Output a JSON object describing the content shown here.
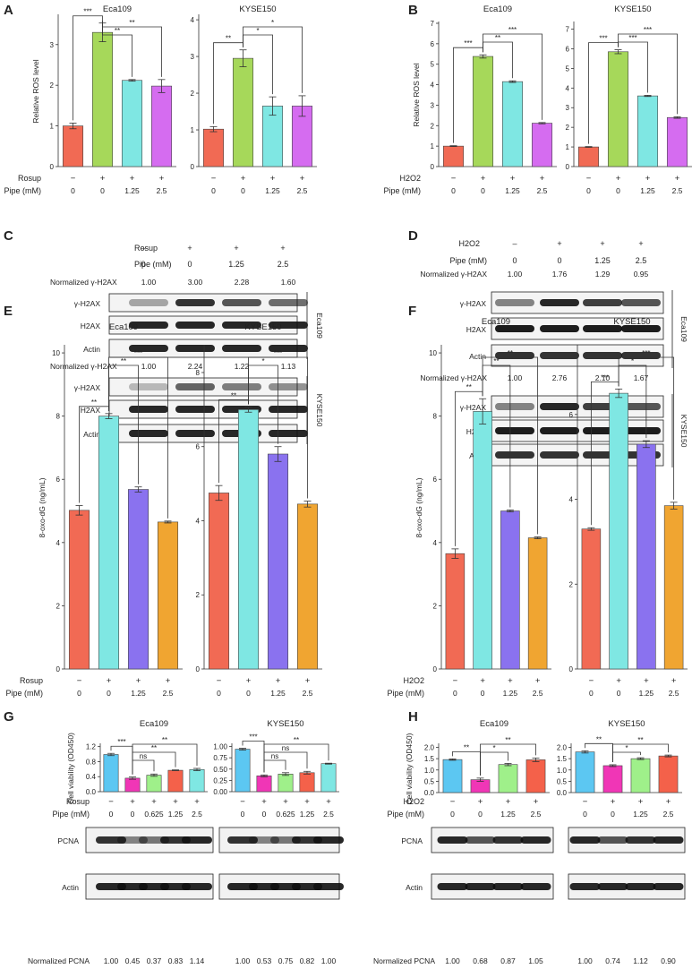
{
  "colors": {
    "red": "#f16a54",
    "green": "#a6d85a",
    "cyan": "#7fe7e3",
    "magenta": "#d56cf0",
    "purple": "#8a72ef",
    "orange": "#f0a531",
    "sky": "#5cc7f2",
    "pink": "#f036b6",
    "lightgreen": "#9ff08a",
    "coral": "#f4614a"
  },
  "panels": {
    "A": {
      "letter": "A",
      "condition": {
        "label": "Rosup",
        "values": [
          "−",
          "+",
          "+",
          "+"
        ]
      },
      "pipe": {
        "label": "Pipe (mM)",
        "values": [
          "0",
          "0",
          "1.25",
          "2.5"
        ]
      }
    },
    "B": {
      "letter": "B",
      "condition": {
        "label": "H2O2",
        "values": [
          "−",
          "+",
          "+",
          "+"
        ]
      },
      "pipe": {
        "label": "Pipe (mM)",
        "values": [
          "0",
          "0",
          "1.25",
          "2.5"
        ]
      }
    },
    "C": {
      "letter": "C",
      "header": {
        "condition_label": "Rosup",
        "condition_values": [
          "–",
          "+",
          "+",
          "+"
        ],
        "pipe_label": "Pipe (mM)",
        "pipe_values": [
          "0",
          "0",
          "1.25",
          "2.5"
        ]
      },
      "groups": [
        {
          "cell": "Eca109",
          "norm_label": "Normalized γ-H2AX",
          "norm": [
            "1.00",
            "3.00",
            "2.28",
            "1.60"
          ],
          "rows": [
            "γ-H2AX",
            "H2AX",
            "Actin"
          ]
        },
        {
          "cell": "KYSE150",
          "norm_label": "Normalized γ-H2AX",
          "norm": [
            "1.00",
            "2.24",
            "1.22",
            "1.13"
          ],
          "rows": [
            "γ-H2AX",
            "H2AX",
            "Actin"
          ]
        }
      ]
    },
    "D": {
      "letter": "D",
      "header": {
        "condition_label": "H2O2",
        "condition_values": [
          "–",
          "+",
          "+",
          "+"
        ],
        "pipe_label": "Pipe (mM)",
        "pipe_values": [
          "0",
          "0",
          "1.25",
          "2.5"
        ]
      },
      "groups": [
        {
          "cell": "Eca109",
          "norm_label": "Normalized γ-H2AX",
          "norm": [
            "1.00",
            "1.76",
            "1.29",
            "0.95"
          ],
          "rows": [
            "γ-H2AX",
            "H2AX",
            "Actin"
          ]
        },
        {
          "cell": "KYSE150",
          "norm_label": "Normalized γ-H2AX",
          "norm": [
            "1.00",
            "2.76",
            "2.10",
            "1.67"
          ],
          "rows": [
            "γ-H2AX",
            "H2AX",
            "Actin"
          ]
        }
      ]
    },
    "E": {
      "letter": "E",
      "condition": {
        "label": "Rosup",
        "values": [
          "−",
          "+",
          "+",
          "+"
        ]
      },
      "pipe": {
        "label": "Pipe (mM)",
        "values": [
          "0",
          "0",
          "1.25",
          "2.5"
        ]
      }
    },
    "F": {
      "letter": "F",
      "condition": {
        "label": "H2O2",
        "values": [
          "−",
          "+",
          "+",
          "+"
        ]
      },
      "pipe": {
        "label": "Pipe (mM)",
        "values": [
          "0",
          "0",
          "1.25",
          "2.5"
        ]
      }
    },
    "G": {
      "letter": "G",
      "condition": {
        "label": "Rosup",
        "values": [
          "−",
          "+",
          "+",
          "+",
          "+"
        ]
      },
      "pipe": {
        "label": "Pipe (mM)",
        "values": [
          "0",
          "0",
          "0.625",
          "1.25",
          "2.5"
        ]
      },
      "blots": [
        "PCNA",
        "Actin"
      ],
      "norm_label": "Normalized PCNA",
      "norm": [
        [
          "1.00",
          "0.45",
          "0.37",
          "0.83",
          "1.14"
        ],
        [
          "1.00",
          "0.53",
          "0.75",
          "0.82",
          "1.00"
        ]
      ]
    },
    "H": {
      "letter": "H",
      "condition": {
        "label": "H2O2",
        "values": [
          "−",
          "+",
          "+",
          "+"
        ]
      },
      "pipe": {
        "label": "Pipe (mM)",
        "values": [
          "0",
          "0",
          "1.25",
          "2.5"
        ]
      },
      "blots": [
        "PCNA",
        "Actin"
      ],
      "norm_label": "Normalized PCNA",
      "norm": [
        [
          "1.00",
          "0.68",
          "0.87",
          "1.05"
        ],
        [
          "1.00",
          "0.74",
          "1.12",
          "0.90"
        ]
      ]
    }
  },
  "chart_data": [
    {
      "id": "A1",
      "type": "bar",
      "title": "Eca109",
      "ylabel": "Relative ROS level",
      "ylim": [
        0,
        3.7
      ],
      "yticks": [
        0,
        1,
        2,
        3
      ],
      "values": [
        1.0,
        3.3,
        2.12,
        1.98
      ],
      "errors": [
        0.07,
        0.23,
        0.02,
        0.16
      ],
      "colors": [
        "red",
        "green",
        "cyan",
        "magenta"
      ],
      "sig": [
        {
          "from": 0,
          "to": 1,
          "label": "***"
        },
        {
          "from": 1,
          "to": 2,
          "label": "**"
        },
        {
          "from": 1,
          "to": 3,
          "label": "**"
        }
      ]
    },
    {
      "id": "A2",
      "type": "bar",
      "title": "KYSE150",
      "ylabel": "",
      "ylim": [
        0,
        4.1
      ],
      "yticks": [
        0,
        1,
        2,
        3,
        4
      ],
      "values": [
        1.02,
        2.95,
        1.65,
        1.65
      ],
      "errors": [
        0.07,
        0.23,
        0.25,
        0.28
      ],
      "colors": [
        "red",
        "green",
        "cyan",
        "magenta"
      ],
      "sig": [
        {
          "from": 0,
          "to": 1,
          "label": "**"
        },
        {
          "from": 1,
          "to": 2,
          "label": "*"
        },
        {
          "from": 1,
          "to": 3,
          "label": "*"
        }
      ]
    },
    {
      "id": "B1",
      "type": "bar",
      "title": "Eca109",
      "ylabel": "Relative ROS level",
      "ylim": [
        0,
        7
      ],
      "yticks": [
        0,
        1,
        2,
        3,
        4,
        5,
        6,
        7
      ],
      "values": [
        1.0,
        5.38,
        4.15,
        2.12
      ],
      "errors": [
        0.02,
        0.08,
        0.04,
        0.03
      ],
      "colors": [
        "red",
        "green",
        "cyan",
        "magenta"
      ],
      "sig": [
        {
          "from": 0,
          "to": 1,
          "label": "***"
        },
        {
          "from": 1,
          "to": 2,
          "label": "**"
        },
        {
          "from": 1,
          "to": 3,
          "label": "***"
        }
      ]
    },
    {
      "id": "B2",
      "type": "bar",
      "title": "KYSE150",
      "ylabel": "",
      "ylim": [
        0,
        7.3
      ],
      "yticks": [
        0,
        1,
        2,
        3,
        4,
        5,
        6,
        7
      ],
      "values": [
        1.0,
        5.85,
        3.6,
        2.5
      ],
      "errors": [
        0.02,
        0.1,
        0.03,
        0.04
      ],
      "colors": [
        "red",
        "green",
        "cyan",
        "magenta"
      ],
      "sig": [
        {
          "from": 0,
          "to": 1,
          "label": "***"
        },
        {
          "from": 1,
          "to": 2,
          "label": "***"
        },
        {
          "from": 1,
          "to": 3,
          "label": "***"
        }
      ]
    },
    {
      "id": "E1",
      "type": "bar",
      "title": "Eca109",
      "ylabel": "8-oxo-dG (ng/mL)",
      "ylim": [
        0,
        10.2
      ],
      "yticks": [
        0,
        2,
        4,
        6,
        8,
        10
      ],
      "values": [
        5.02,
        8.0,
        5.68,
        4.65
      ],
      "errors": [
        0.15,
        0.08,
        0.08,
        0.03
      ],
      "colors": [
        "red",
        "cyan",
        "purple",
        "orange"
      ],
      "sig": [
        {
          "from": 0,
          "to": 1,
          "label": "**"
        },
        {
          "from": 1,
          "to": 2,
          "label": "**"
        },
        {
          "from": 1,
          "to": 3,
          "label": "***"
        }
      ]
    },
    {
      "id": "E2",
      "type": "bar",
      "title": "KYSE150",
      "ylabel": "",
      "ylim": [
        0,
        8.7
      ],
      "yticks": [
        0,
        2,
        4,
        6,
        8
      ],
      "values": [
        4.75,
        7.0,
        5.8,
        4.45
      ],
      "errors": [
        0.2,
        0.07,
        0.2,
        0.08
      ],
      "colors": [
        "red",
        "cyan",
        "purple",
        "orange"
      ],
      "sig": [
        {
          "from": 0,
          "to": 1,
          "label": "**"
        },
        {
          "from": 1,
          "to": 2,
          "label": "*"
        },
        {
          "from": 1,
          "to": 3,
          "label": "***"
        }
      ]
    },
    {
      "id": "F1",
      "type": "bar",
      "title": "Eca109",
      "ylabel": "8-oxo-dG (ng/mL)",
      "ylim": [
        0,
        10.2
      ],
      "yticks": [
        0,
        2,
        4,
        6,
        8,
        10
      ],
      "values": [
        3.65,
        8.15,
        5.0,
        4.15
      ],
      "errors": [
        0.15,
        0.4,
        0.03,
        0.03
      ],
      "colors": [
        "red",
        "cyan",
        "purple",
        "orange"
      ],
      "sig": [
        {
          "from": 0,
          "to": 1,
          "label": "**"
        },
        {
          "from": 1,
          "to": 2,
          "label": "**"
        },
        {
          "from": 1,
          "to": 3,
          "label": "**"
        }
      ]
    },
    {
      "id": "F2",
      "type": "bar",
      "title": "KYSE150",
      "ylabel": "",
      "ylim": [
        0,
        7.6
      ],
      "yticks": [
        0,
        2,
        4,
        6
      ],
      "values": [
        3.3,
        6.5,
        5.3,
        3.85
      ],
      "errors": [
        0.03,
        0.1,
        0.08,
        0.08
      ],
      "colors": [
        "red",
        "cyan",
        "purple",
        "orange"
      ],
      "sig": [
        {
          "from": 0,
          "to": 1,
          "label": "***"
        },
        {
          "from": 1,
          "to": 2,
          "label": "*"
        },
        {
          "from": 1,
          "to": 3,
          "label": "***"
        }
      ]
    },
    {
      "id": "G1",
      "type": "bar",
      "title": "Eca109",
      "ylabel": "Cell viability (OD450)",
      "ylim": [
        0,
        1.24
      ],
      "yticks": [
        0.0,
        0.4,
        0.8,
        1.2
      ],
      "ticklabels": [
        "0.0",
        "0.4",
        "0.8",
        "1.2"
      ],
      "values": [
        0.99,
        0.36,
        0.44,
        0.57,
        0.59
      ],
      "errors": [
        0.03,
        0.03,
        0.03,
        0.01,
        0.03
      ],
      "colors": [
        "sky",
        "pink",
        "lightgreen",
        "coral",
        "cyan"
      ],
      "sig": [
        {
          "from": 0,
          "to": 1,
          "label": "***"
        },
        {
          "from": 1,
          "to": 2,
          "label": "ns"
        },
        {
          "from": 1,
          "to": 3,
          "label": "**"
        },
        {
          "from": 1,
          "to": 4,
          "label": "**"
        }
      ]
    },
    {
      "id": "G2",
      "type": "bar",
      "title": "KYSE150",
      "ylabel": "",
      "ylim": [
        0,
        1.03
      ],
      "yticks": [
        0.0,
        0.25,
        0.5,
        0.75,
        1.0
      ],
      "ticklabels": [
        "0.00",
        "0.25",
        "0.50",
        "0.75",
        "1.00"
      ],
      "values": [
        0.94,
        0.35,
        0.39,
        0.42,
        0.62
      ],
      "errors": [
        0.02,
        0.02,
        0.03,
        0.03,
        0.01
      ],
      "colors": [
        "sky",
        "pink",
        "lightgreen",
        "coral",
        "cyan"
      ],
      "sig": [
        {
          "from": 0,
          "to": 1,
          "label": "***"
        },
        {
          "from": 1,
          "to": 2,
          "label": "ns"
        },
        {
          "from": 1,
          "to": 3,
          "label": "ns"
        },
        {
          "from": 1,
          "to": 4,
          "label": "**"
        }
      ]
    },
    {
      "id": "H1",
      "type": "bar",
      "title": "Eca109",
      "ylabel": "Cell viability (OD450)",
      "ylim": [
        0,
        2.1
      ],
      "yticks": [
        0.0,
        0.5,
        1.0,
        1.5,
        2.0
      ],
      "ticklabels": [
        "0.0",
        "0.5",
        "1.0",
        "1.5",
        "2.0"
      ],
      "values": [
        1.46,
        0.57,
        1.24,
        1.45
      ],
      "errors": [
        0.03,
        0.07,
        0.05,
        0.08
      ],
      "colors": [
        "sky",
        "pink",
        "lightgreen",
        "coral"
      ],
      "sig": [
        {
          "from": 0,
          "to": 1,
          "label": "**"
        },
        {
          "from": 1,
          "to": 2,
          "label": "*"
        },
        {
          "from": 1,
          "to": 3,
          "label": "**"
        }
      ]
    },
    {
      "id": "H2",
      "type": "bar",
      "title": "KYSE150",
      "ylabel": "",
      "ylim": [
        0,
        2.1
      ],
      "yticks": [
        0.0,
        0.5,
        1.0,
        1.5,
        2.0
      ],
      "ticklabels": [
        "0.0",
        "0.5",
        "1.0",
        "1.5",
        "2.0"
      ],
      "values": [
        1.8,
        1.19,
        1.5,
        1.62
      ],
      "errors": [
        0.05,
        0.04,
        0.04,
        0.04
      ],
      "colors": [
        "sky",
        "pink",
        "lightgreen",
        "coral"
      ],
      "sig": [
        {
          "from": 0,
          "to": 1,
          "label": "**"
        },
        {
          "from": 1,
          "to": 2,
          "label": "*"
        },
        {
          "from": 1,
          "to": 3,
          "label": "**"
        }
      ]
    }
  ]
}
